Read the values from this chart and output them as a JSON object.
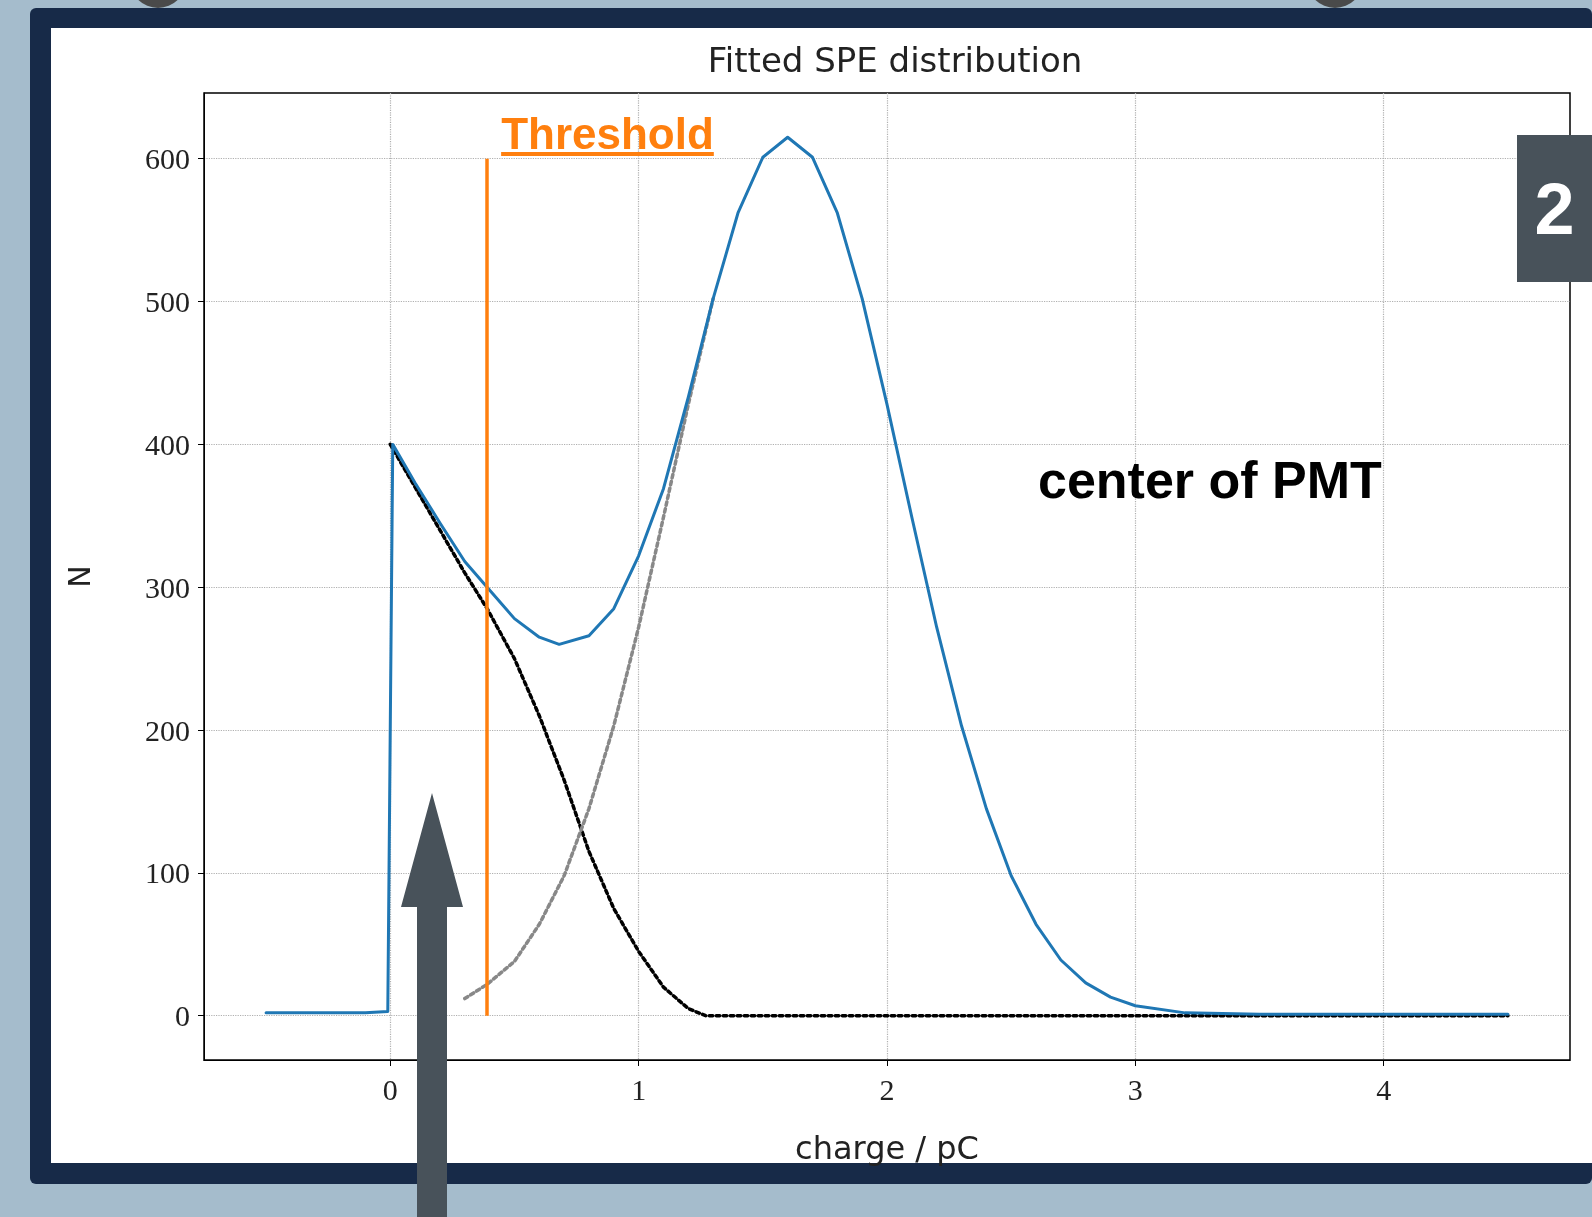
{
  "chart_data": {
    "type": "line",
    "title": "Fitted SPE distribution",
    "xlabel": "charge / pC",
    "ylabel": "N",
    "xlim": [
      -0.75,
      4.75
    ],
    "xticks": [
      0,
      1,
      2,
      3,
      4
    ],
    "ylim": [
      -31,
      646
    ],
    "yticks": [
      0,
      100,
      200,
      300,
      400,
      500,
      600
    ],
    "grid": true,
    "marker": "none",
    "series": [
      {
        "color": "#1f77b4",
        "line_style": "solid",
        "x": [
          -0.5,
          -0.1,
          -0.01,
          0.01,
          0.1,
          0.2,
          0.3,
          0.39,
          0.5,
          0.6,
          0.68,
          0.8,
          0.9,
          1.0,
          1.1,
          1.2,
          1.3,
          1.4,
          1.5,
          1.6,
          1.7,
          1.8,
          1.9,
          2.0,
          2.1,
          2.2,
          2.3,
          2.4,
          2.5,
          2.6,
          2.7,
          2.8,
          2.9,
          3.0,
          3.2,
          3.5,
          4.5
        ],
        "values": [
          2,
          2,
          3,
          400,
          373,
          345,
          318,
          300,
          278,
          265,
          260,
          266,
          285,
          322,
          369,
          433,
          502,
          562,
          601,
          615,
          601,
          562,
          502,
          428,
          349,
          272,
          203,
          145,
          98,
          64,
          39,
          23,
          13,
          7,
          2,
          1,
          1
        ]
      },
      {
        "color": "#000000",
        "line_style": "dotted",
        "x": [
          0,
          0.1,
          0.2,
          0.3,
          0.39,
          0.5,
          0.6,
          0.7,
          0.8,
          0.9,
          1.0,
          1.1,
          1.2,
          1.27,
          4.5
        ],
        "values": [
          400,
          370,
          340,
          310,
          285,
          250,
          210,
          165,
          115,
          75,
          45,
          20,
          5,
          0,
          0
        ]
      },
      {
        "color": "#888888",
        "line_style": "dotted",
        "x": [
          0.3,
          0.39,
          0.5,
          0.6,
          0.7,
          0.8,
          0.9,
          1.0,
          1.1,
          1.2,
          1.3
        ],
        "values": [
          12,
          22,
          38,
          64,
          98,
          145,
          203,
          272,
          349,
          428,
          502
        ]
      }
    ],
    "ref_lines": [
      {
        "axis": "x",
        "value": 0.39,
        "label": "Threshold",
        "color": "#ff7f0e",
        "line_style": "solid"
      }
    ],
    "annotations": [
      "center of PMT",
      "2"
    ]
  }
}
